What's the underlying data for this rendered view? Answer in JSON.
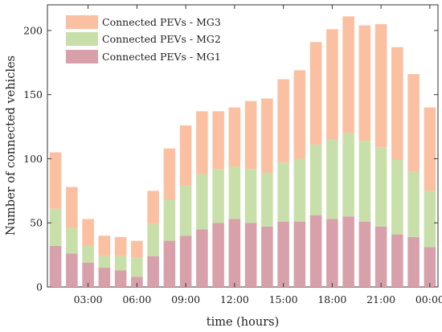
{
  "chart_data": {
    "type": "bar",
    "stacked": true,
    "xlabel": "time (hours)",
    "ylabel": "Number of connected vehicles",
    "ylim": [
      0,
      220
    ],
    "yticks": [
      0,
      50,
      100,
      150,
      200
    ],
    "categories": [
      "01:00",
      "02:00",
      "03:00",
      "04:00",
      "05:00",
      "06:00",
      "07:00",
      "08:00",
      "09:00",
      "10:00",
      "11:00",
      "12:00",
      "13:00",
      "14:00",
      "15:00",
      "16:00",
      "17:00",
      "18:00",
      "19:00",
      "20:00",
      "21:00",
      "22:00",
      "23:00",
      "00:00"
    ],
    "xtick_labels": [
      "03:00",
      "06:00",
      "09:00",
      "12:00",
      "15:00",
      "18:00",
      "21:00",
      "00:00"
    ],
    "series": [
      {
        "name": "Connected PEVs - MG1",
        "color": "#d8a0aa",
        "values": [
          32,
          26,
          19,
          15,
          13,
          8,
          24,
          36,
          40,
          45,
          50,
          53,
          50,
          47,
          51,
          51,
          56,
          53,
          55,
          51,
          47,
          41,
          39,
          31
        ]
      },
      {
        "name": "Connected PEVs - MG2",
        "color": "#c9dfaa",
        "values": [
          29,
          20,
          13,
          9,
          11,
          15,
          25,
          32,
          39,
          43,
          42,
          41,
          42,
          42,
          46,
          49,
          55,
          62,
          65,
          63,
          62,
          58,
          51,
          44
        ]
      },
      {
        "name": "Connected PEVs - MG3",
        "color": "#fbc0a2",
        "values": [
          44,
          32,
          21,
          16,
          15,
          13,
          26,
          40,
          47,
          49,
          45,
          46,
          53,
          58,
          65,
          69,
          80,
          86,
          91,
          90,
          96,
          88,
          76,
          65
        ]
      }
    ],
    "legend_position": "top-left",
    "grid": false
  }
}
